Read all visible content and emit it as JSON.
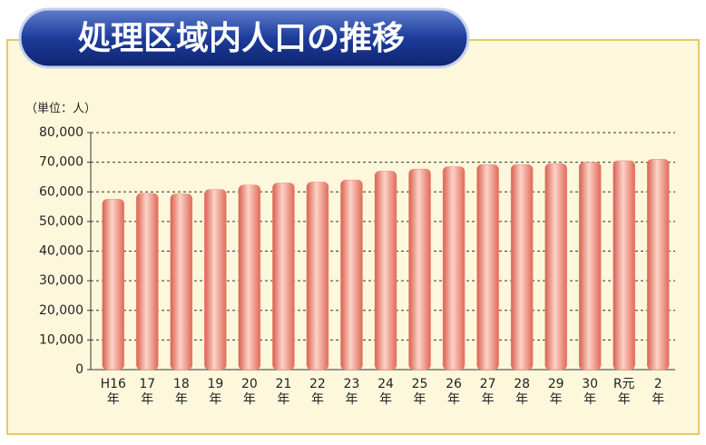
{
  "chart_data": {
    "type": "bar",
    "title": "処理区域内人口の推移",
    "unit_label": "（単位：人）",
    "categories": [
      "H16年",
      "17年",
      "18年",
      "19年",
      "20年",
      "21年",
      "22年",
      "23年",
      "24年",
      "25年",
      "26年",
      "27年",
      "28年",
      "29年",
      "30年",
      "R元年",
      "2年"
    ],
    "values": [
      57500,
      59500,
      59300,
      60800,
      62300,
      63000,
      63300,
      64000,
      67000,
      67700,
      68500,
      69200,
      69200,
      69500,
      70000,
      70500,
      71000
    ],
    "color": "#f08a7a",
    "ylim": [
      0,
      80000
    ],
    "yticks": [
      0,
      {
        "value": 10000,
        "label": "10,000"
      },
      {
        "value": 20000,
        "label": "20,000"
      },
      {
        "value": 30000,
        "label": "30,000"
      },
      {
        "value": 40000,
        "label": "40,000"
      },
      {
        "value": 50000,
        "label": "50,000"
      },
      {
        "value": 60000,
        "label": "60,000"
      },
      {
        "value": 70000,
        "label": "70,000"
      },
      {
        "value": 80000,
        "label": "80,000"
      }
    ],
    "grid": true
  }
}
